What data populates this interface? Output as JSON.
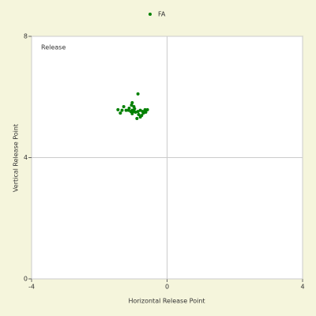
{
  "chart_data": {
    "type": "scatter",
    "annotation": "Release",
    "xlabel": "Horizontal Release Point",
    "ylabel": "Vertical Release Point",
    "xlim": [
      -4,
      4
    ],
    "ylim": [
      0,
      8
    ],
    "xticks": [
      -4,
      0,
      4
    ],
    "yticks": [
      0,
      4,
      8
    ],
    "grid": true,
    "legend": "top",
    "series": [
      {
        "name": "FA",
        "color": "#008000",
        "x": [
          -0.86,
          -1.03,
          -1.05,
          -0.98,
          -1.28,
          -1.45,
          -1.38,
          -1.21,
          -1.14,
          -1.07,
          -1.03,
          -0.98,
          -0.93,
          -0.86,
          -0.79,
          -0.72,
          -0.65,
          -0.58,
          -0.7,
          -0.84,
          -0.79,
          -0.89,
          -1.03,
          -1.12,
          -1.33,
          -0.75,
          -0.96,
          -0.63
        ],
        "y": [
          6.1,
          5.81,
          5.73,
          5.68,
          5.68,
          5.58,
          5.47,
          5.56,
          5.56,
          5.52,
          5.56,
          5.52,
          5.5,
          5.52,
          5.56,
          5.52,
          5.58,
          5.58,
          5.47,
          5.42,
          5.34,
          5.29,
          5.45,
          5.63,
          5.56,
          5.39,
          5.61,
          5.5
        ]
      }
    ]
  }
}
